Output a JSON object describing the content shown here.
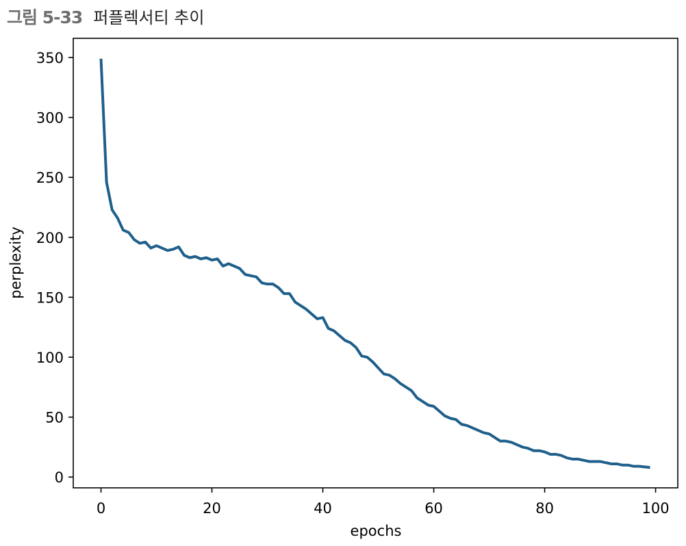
{
  "figure": {
    "number": "그림 5-33",
    "title": "퍼플렉서티 추이"
  },
  "chart_data": {
    "type": "line",
    "title": "",
    "xlabel": "epochs",
    "ylabel": "perplexity",
    "xlim": [
      -5,
      104
    ],
    "ylim": [
      -9,
      366
    ],
    "xticks": [
      0,
      20,
      40,
      60,
      80,
      100
    ],
    "yticks": [
      0,
      50,
      100,
      150,
      200,
      250,
      300,
      350
    ],
    "grid": false,
    "legend": "none",
    "line_color": "#1f5f8b",
    "series": [
      {
        "x": [
          0,
          1,
          2,
          3,
          4,
          5,
          6,
          7,
          8,
          9,
          10,
          11,
          12,
          13,
          14,
          15,
          16,
          17,
          18,
          19,
          20,
          21,
          22,
          23,
          24,
          25,
          26,
          27,
          28,
          29,
          30,
          31,
          32,
          33,
          34,
          35,
          36,
          37,
          38,
          39,
          40,
          41,
          42,
          43,
          44,
          45,
          46,
          47,
          48,
          49,
          50,
          51,
          52,
          53,
          54,
          55,
          56,
          57,
          58,
          59,
          60,
          61,
          62,
          63,
          64,
          65,
          66,
          67,
          68,
          69,
          70,
          71,
          72,
          73,
          74,
          75,
          76,
          77,
          78,
          79,
          80,
          81,
          82,
          83,
          84,
          85,
          86,
          87,
          88,
          89,
          90,
          91,
          92,
          93,
          94,
          95,
          96,
          97,
          98,
          99
        ],
        "values": [
          349,
          246,
          223,
          216,
          206,
          204,
          198,
          195,
          196,
          191,
          193,
          191,
          189,
          190,
          192,
          185,
          183,
          184,
          182,
          183,
          181,
          182,
          176,
          178,
          176,
          174,
          169,
          168,
          167,
          162,
          161,
          161,
          158,
          153,
          153,
          146,
          143,
          140,
          136,
          132,
          133,
          124,
          122,
          118,
          114,
          112,
          108,
          101,
          100,
          96,
          91,
          86,
          85,
          82,
          78,
          75,
          72,
          66,
          63,
          60,
          59,
          55,
          51,
          49,
          48,
          44,
          43,
          41,
          39,
          37,
          36,
          33,
          30,
          30,
          29,
          27,
          25,
          24,
          22,
          22,
          21,
          19,
          19,
          18,
          16,
          15,
          15,
          14,
          13,
          13,
          13,
          12,
          11,
          11,
          10,
          10,
          9,
          9,
          8.5,
          8
        ]
      }
    ]
  }
}
